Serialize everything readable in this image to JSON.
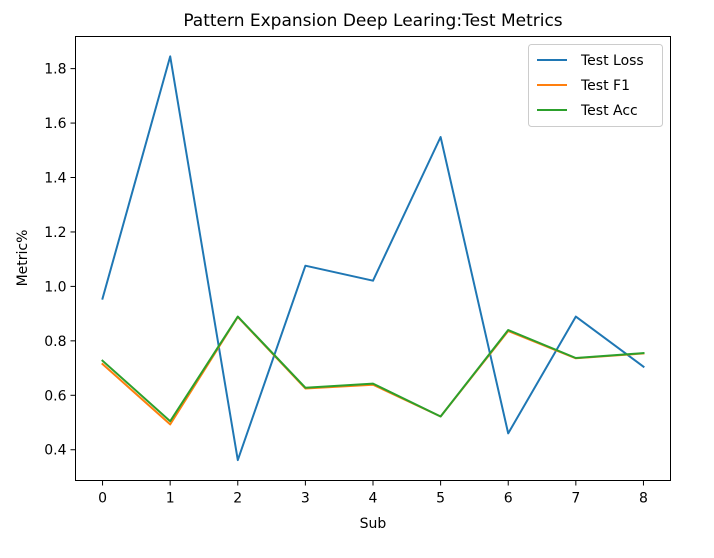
{
  "chart_data": {
    "type": "line",
    "title": "Pattern Expansion Deep Learing:Test Metrics",
    "xlabel": "Sub",
    "ylabel": "Metric%",
    "x": [
      0,
      1,
      2,
      3,
      4,
      5,
      6,
      7,
      8
    ],
    "xticks": [
      "0",
      "1",
      "2",
      "3",
      "4",
      "5",
      "6",
      "7",
      "8"
    ],
    "yticks": [
      "0.4",
      "0.6",
      "0.8",
      "1.0",
      "1.2",
      "1.4",
      "1.6",
      "1.8"
    ],
    "xlim": [
      -0.4,
      8.4
    ],
    "ylim": [
      0.287,
      1.918
    ],
    "grid": false,
    "legend_position": "upper-right",
    "series": [
      {
        "name": "Test Loss",
        "color": "#1f77b4",
        "values": [
          0.955,
          1.845,
          0.362,
          1.076,
          1.021,
          1.549,
          0.46,
          0.889,
          0.705
        ]
      },
      {
        "name": "Test F1",
        "color": "#ff7f0e",
        "values": [
          0.715,
          0.493,
          0.888,
          0.625,
          0.639,
          0.522,
          0.836,
          0.736,
          0.754
        ]
      },
      {
        "name": "Test Acc",
        "color": "#2ca02c",
        "values": [
          0.727,
          0.505,
          0.889,
          0.628,
          0.643,
          0.522,
          0.84,
          0.737,
          0.755
        ]
      }
    ]
  }
}
